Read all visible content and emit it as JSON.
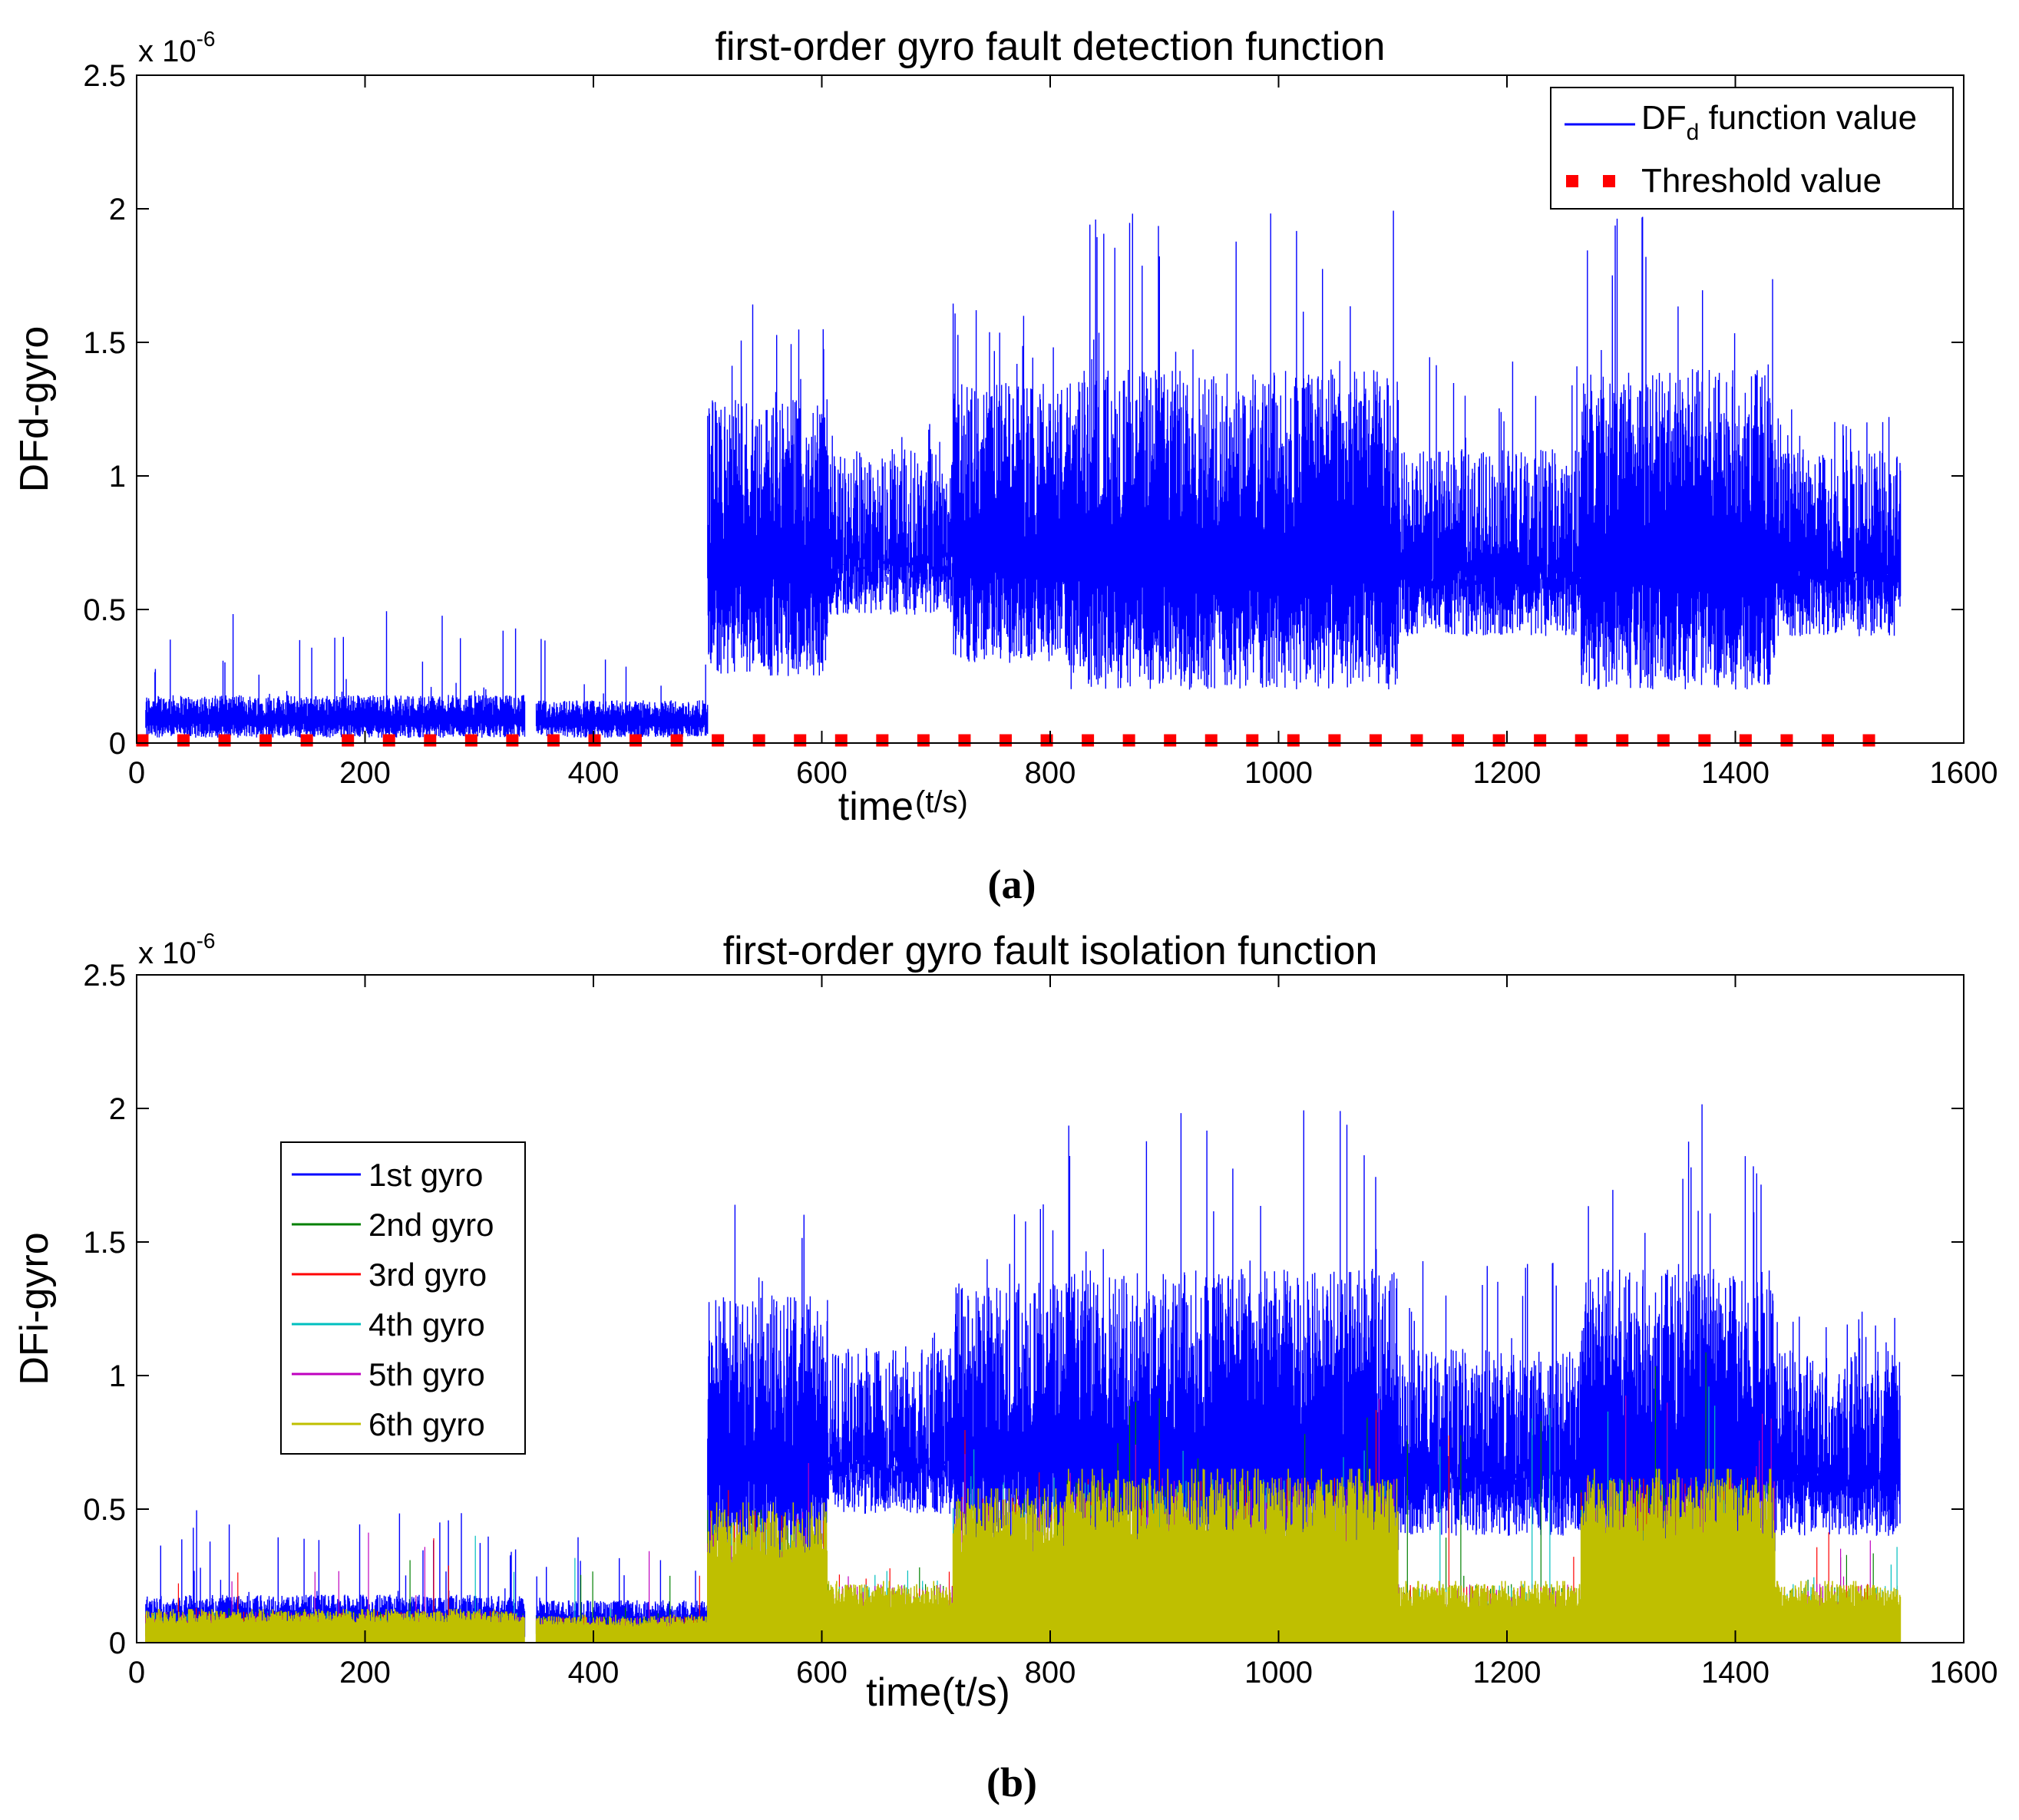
{
  "figure": {
    "captions": [
      "(a)",
      "(b)"
    ]
  },
  "chart_data": [
    {
      "type": "line",
      "panel": "(a)",
      "title": "first-order gyro fault detection function",
      "xlabel": "time",
      "xlabel_unit": "(t/s)",
      "ylabel": "DFd-gyro",
      "y_exponent": "x 10",
      "y_exponent_power": "-6",
      "xlim": [
        0,
        1600
      ],
      "ylim": [
        0,
        2.5
      ],
      "x_ticks": [
        "0",
        "200",
        "400",
        "600",
        "800",
        "1000",
        "1200",
        "1400",
        "1600"
      ],
      "y_ticks": [
        "0",
        "0.5",
        "1",
        "1.5",
        "2",
        "2.5"
      ],
      "legend_position": "top-right",
      "series": [
        {
          "name": "DF_d function value",
          "legend_main": "DF",
          "legend_sub": "d",
          "legend_rest": " function value",
          "color": "#0000ff",
          "style": "solid",
          "x_range": [
            0,
            1545
          ],
          "segments": [
            {
              "x": [
                8,
                340
              ],
              "min": 0.02,
              "base_high": 0.18,
              "peak": 0.52
            },
            {
              "x": [
                350,
                500
              ],
              "min": 0.02,
              "base_high": 0.16,
              "peak": 0.42
            },
            {
              "x": [
                500,
                605
              ],
              "min": 0.25,
              "base_high": 1.3,
              "peak": 1.66
            },
            {
              "x": [
                605,
                715
              ],
              "min": 0.48,
              "base_high": 1.1,
              "peak": 1.2
            },
            {
              "x": [
                715,
                815
              ],
              "min": 0.3,
              "base_high": 1.35,
              "peak": 1.65
            },
            {
              "x": [
                815,
                1105
              ],
              "min": 0.2,
              "base_high": 1.4,
              "peak": 2.0
            },
            {
              "x": [
                1105,
                1265
              ],
              "min": 0.4,
              "base_high": 1.1,
              "peak": 1.45
            },
            {
              "x": [
                1265,
                1435
              ],
              "min": 0.2,
              "base_high": 1.4,
              "peak": 2.02
            },
            {
              "x": [
                1435,
                1545
              ],
              "min": 0.4,
              "base_high": 1.1,
              "peak": 1.25
            }
          ]
        },
        {
          "name": "Threshold value",
          "color": "#ff0000",
          "style": "dotted-squares",
          "x_range": [
            0,
            1545
          ],
          "value": 0.01
        }
      ]
    },
    {
      "type": "line",
      "panel": "(b)",
      "title": "first-order gyro fault isolation function",
      "xlabel": "time(t/s)",
      "ylabel": "DFi-gyro",
      "y_exponent": "x 10",
      "y_exponent_power": "-6",
      "xlim": [
        0,
        1600
      ],
      "ylim": [
        0,
        2.5
      ],
      "x_ticks": [
        "0",
        "200",
        "400",
        "600",
        "800",
        "1000",
        "1200",
        "1400",
        "1600"
      ],
      "y_ticks": [
        "0",
        "0.5",
        "1",
        "1.5",
        "2",
        "2.5"
      ],
      "legend_position": "middle-left",
      "series": [
        {
          "name": "1st gyro",
          "color": "#0000ff",
          "peak": 2.1,
          "x_range": [
            0,
            1545
          ]
        },
        {
          "name": "2nd gyro",
          "color": "#008000",
          "peak": 1.35,
          "x_range": [
            0,
            1545
          ]
        },
        {
          "name": "3rd gyro",
          "color": "#ff0000",
          "peak": 0.95,
          "x_range": [
            0,
            1545
          ]
        },
        {
          "name": "4th gyro",
          "color": "#00bfbf",
          "peak": 1.0,
          "x_range": [
            0,
            1545
          ]
        },
        {
          "name": "5th gyro",
          "color": "#bf00bf",
          "peak": 0.93,
          "x_range": [
            0,
            1545
          ]
        },
        {
          "name": "6th gyro",
          "color": "#bfbf00",
          "peak": 0.85,
          "x_range": [
            0,
            1545
          ]
        }
      ]
    }
  ]
}
